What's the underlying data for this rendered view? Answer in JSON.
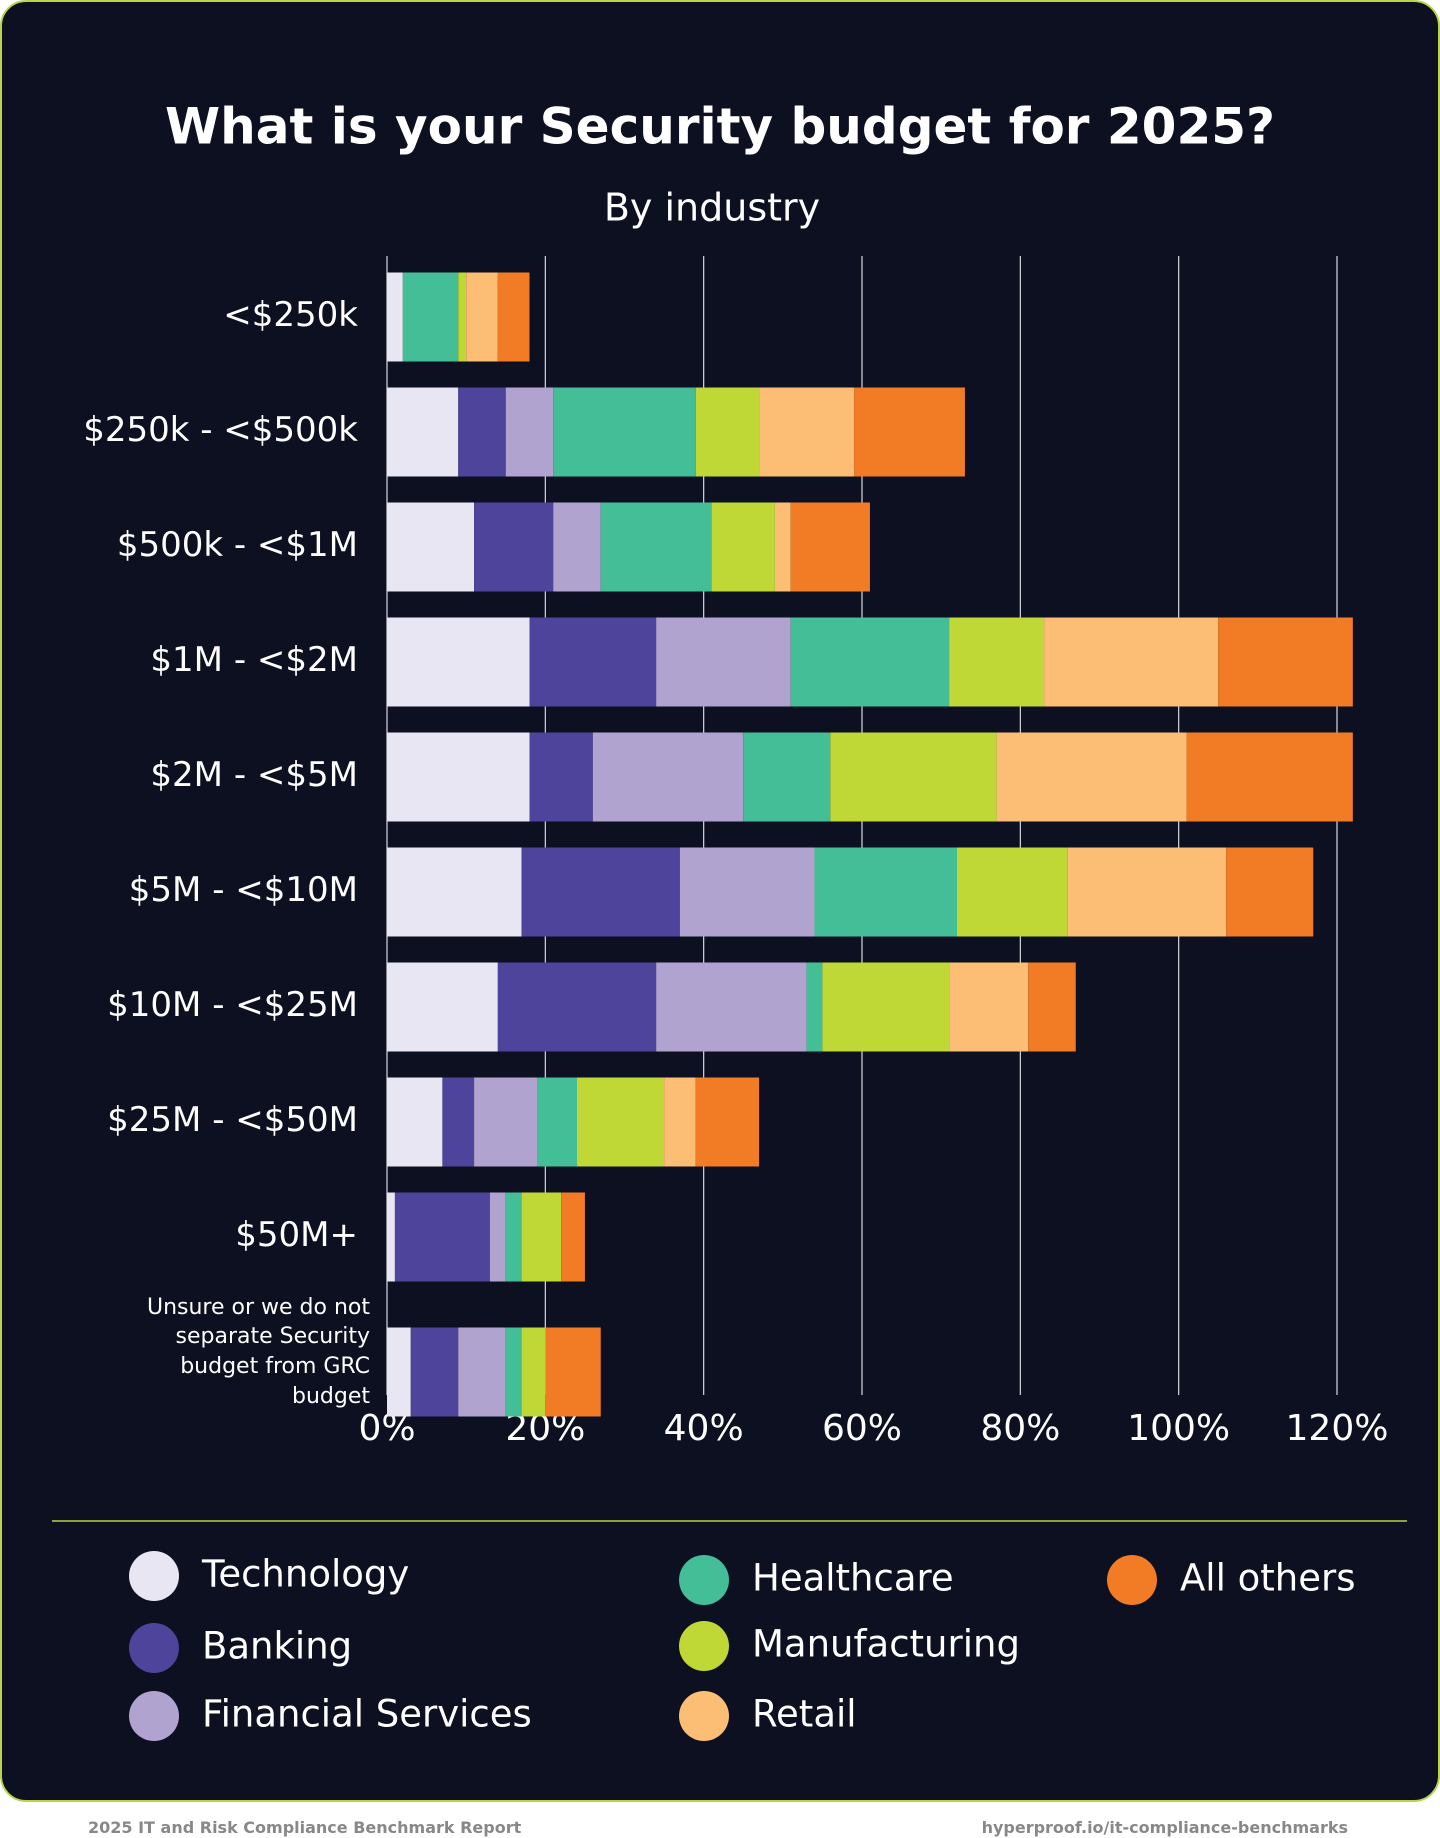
{
  "chart_data": {
    "type": "stacked-bar-horizontal",
    "title": "What is your Security budget for 2025?",
    "subtitle": "By industry",
    "categories": [
      "<$250k",
      "$250k - <$500k",
      "$500k - <$1M",
      "$1M - <$2M",
      "$2M - <$5M",
      "$5M - <$10M",
      "$10M - <$25M",
      "$25M - <$50M",
      "$50M+",
      "Unsure or we do not separate Security budget from GRC budget"
    ],
    "series": [
      {
        "name": "Technology",
        "color": "#e8e6f2",
        "values": [
          2,
          9,
          11,
          18,
          18,
          17,
          14,
          7,
          1,
          3
        ]
      },
      {
        "name": "Banking",
        "color": "#4e449c",
        "values": [
          0,
          6,
          10,
          16,
          8,
          20,
          20,
          4,
          12,
          6
        ]
      },
      {
        "name": "Financial Services",
        "color": "#b1a3cf",
        "values": [
          0,
          6,
          6,
          17,
          19,
          17,
          19,
          8,
          2,
          6
        ]
      },
      {
        "name": "Healthcare",
        "color": "#43be96",
        "values": [
          7,
          18,
          14,
          20,
          11,
          18,
          2,
          5,
          2,
          2
        ]
      },
      {
        "name": "Manufacturing",
        "color": "#bfd836",
        "values": [
          1,
          8,
          8,
          12,
          21,
          14,
          16,
          11,
          5,
          3
        ]
      },
      {
        "name": "Retail",
        "color": "#fbbe74",
        "values": [
          4,
          12,
          2,
          22,
          24,
          20,
          10,
          4,
          0,
          0
        ]
      },
      {
        "name": "All others",
        "color": "#f27b25",
        "values": [
          4,
          14,
          10,
          17,
          21,
          11,
          6,
          8,
          3,
          7
        ]
      }
    ],
    "xlim": [
      0,
      120
    ],
    "xticks": [
      {
        "value": 0,
        "label": "0%"
      },
      {
        "value": 20,
        "label": "20%"
      },
      {
        "value": 40,
        "label": "40%"
      },
      {
        "value": 60,
        "label": "60%"
      },
      {
        "value": 80,
        "label": "80%"
      },
      {
        "value": 100,
        "label": "100%"
      },
      {
        "value": 120,
        "label": "120%"
      }
    ],
    "grid": true
  },
  "footer": {
    "left": "2025 IT and Risk Compliance Benchmark Report",
    "right": "hyperproof.io/it-compliance-benchmarks"
  }
}
